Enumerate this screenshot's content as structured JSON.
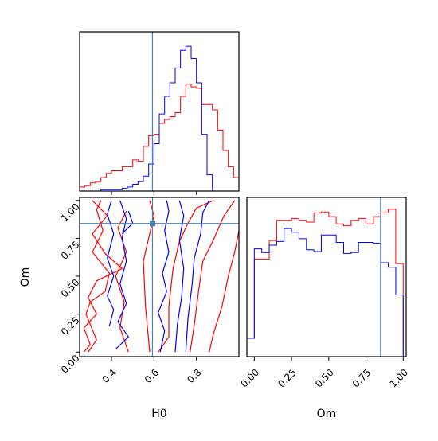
{
  "chart_data": {
    "type": "corner",
    "parameters": [
      "H0",
      "Om"
    ],
    "truth": {
      "H0": 0.593,
      "Om": 0.848
    },
    "colors": {
      "series_a": "#ff0000",
      "series_b": "#0000ff",
      "truth": "#4682b4"
    },
    "series": [
      {
        "color_key": "series_a"
      },
      {
        "color_key": "series_b"
      }
    ],
    "panels": [
      {
        "id": "hist-h0",
        "type": "histogram",
        "x_range": [
          0.25,
          1.0
        ],
        "show_x_ticks": false,
        "bin_edges": [
          0.25,
          0.275,
          0.3,
          0.325,
          0.35,
          0.375,
          0.4,
          0.425,
          0.45,
          0.475,
          0.5,
          0.525,
          0.55,
          0.575,
          0.6,
          0.625,
          0.65,
          0.675,
          0.7,
          0.725,
          0.75,
          0.775,
          0.8,
          0.825,
          0.85,
          0.875,
          0.9,
          0.925,
          0.95,
          0.975,
          1.0
        ],
        "series_counts": [
          [
            3,
            4,
            6,
            7,
            10,
            13,
            15,
            15,
            18,
            18,
            23,
            22,
            33,
            41,
            42,
            50,
            53,
            55,
            58,
            70,
            79,
            77,
            76,
            64,
            64,
            60,
            45,
            30,
            18,
            10
          ],
          [
            0,
            0,
            0,
            0,
            1,
            1,
            1,
            1,
            2,
            3,
            5,
            7,
            11,
            20,
            35,
            57,
            70,
            80,
            91,
            104,
            107,
            98,
            80,
            42,
            12,
            0,
            0,
            0,
            0,
            0
          ]
        ]
      },
      {
        "id": "contour-h0-om",
        "type": "contour",
        "x_range": [
          0.25,
          1.0
        ],
        "y_range": [
          -0.03,
          1.02
        ],
        "xticks": [
          {
            "v": 0.4,
            "t": "0.4"
          },
          {
            "v": 0.6,
            "t": "0.6"
          },
          {
            "v": 0.8,
            "t": "0.8"
          }
        ],
        "yticks": [
          {
            "v": 0.0,
            "t": "0.00"
          },
          {
            "v": 0.25,
            "t": "0.25"
          },
          {
            "v": 0.5,
            "t": "0.50"
          },
          {
            "v": 0.75,
            "t": "0.75"
          },
          {
            "v": 1.0,
            "t": "1.00"
          }
        ],
        "xlabel": "H0",
        "ylabel": "Om",
        "series_contours": [
          [
            [
              [
                0.27,
                0.0
              ],
              [
                0.3,
                0.05
              ],
              [
                0.27,
                0.16
              ],
              [
                0.33,
                0.25
              ],
              [
                0.29,
                0.36
              ],
              [
                0.33,
                0.47
              ],
              [
                0.45,
                0.55
              ],
              [
                0.37,
                0.65
              ],
              [
                0.31,
                0.78
              ],
              [
                0.38,
                0.9
              ],
              [
                0.31,
                1.0
              ]
            ],
            [
              [
                0.29,
                0.0
              ],
              [
                0.33,
                0.08
              ],
              [
                0.28,
                0.25
              ],
              [
                0.3,
                0.33
              ],
              [
                0.37,
                0.4
              ],
              [
                0.39,
                0.52
              ],
              [
                0.31,
                0.66
              ],
              [
                0.36,
                0.8
              ],
              [
                0.33,
                0.94
              ],
              [
                0.35,
                1.0
              ]
            ],
            [
              [
                0.48,
                0.0
              ],
              [
                0.44,
                0.16
              ],
              [
                0.46,
                0.33
              ],
              [
                0.42,
                0.5
              ],
              [
                0.47,
                0.66
              ],
              [
                0.43,
                0.82
              ],
              [
                0.47,
                0.93
              ]
            ],
            [
              [
                0.58,
                0.0
              ],
              [
                0.56,
                0.3
              ],
              [
                0.55,
                0.6
              ],
              [
                0.6,
                0.9
              ],
              [
                0.58,
                1.0
              ]
            ],
            [
              [
                0.62,
                0.0
              ],
              [
                0.67,
                0.1
              ],
              [
                0.67,
                0.3
              ],
              [
                0.69,
                0.55
              ],
              [
                0.72,
                0.73
              ],
              [
                0.76,
                0.85
              ],
              [
                0.8,
                0.95
              ],
              [
                0.88,
                1.0
              ]
            ],
            [
              [
                0.77,
                0.0
              ],
              [
                0.79,
                0.18
              ],
              [
                0.81,
                0.4
              ],
              [
                0.83,
                0.6
              ],
              [
                0.88,
                0.74
              ],
              [
                0.93,
                0.9
              ],
              [
                0.98,
                1.0
              ]
            ],
            [
              [
                0.86,
                0.0
              ],
              [
                0.88,
                0.12
              ],
              [
                0.92,
                0.3
              ],
              [
                0.95,
                0.5
              ],
              [
                0.98,
                0.66
              ],
              [
                1.0,
                0.8
              ]
            ]
          ],
          [
            [
              [
                0.39,
                0.17
              ],
              [
                0.41,
                0.28
              ],
              [
                0.38,
                0.37
              ],
              [
                0.41,
                0.5
              ],
              [
                0.38,
                0.62
              ],
              [
                0.41,
                0.78
              ],
              [
                0.38,
                0.91
              ],
              [
                0.4,
                1.0
              ]
            ],
            [
              [
                0.42,
                0.02
              ],
              [
                0.48,
                0.1
              ],
              [
                0.43,
                0.2
              ],
              [
                0.47,
                0.32
              ],
              [
                0.44,
                0.45
              ],
              [
                0.47,
                0.6
              ],
              [
                0.45,
                0.75
              ],
              [
                0.47,
                0.88
              ],
              [
                0.44,
                1.0
              ]
            ],
            [
              [
                0.48,
                0.93
              ],
              [
                0.5,
                0.85
              ],
              [
                0.45,
                0.78
              ]
            ],
            [
              [
                0.63,
                0.0
              ],
              [
                0.65,
                0.14
              ],
              [
                0.62,
                0.26
              ],
              [
                0.66,
                0.4
              ],
              [
                0.64,
                0.52
              ],
              [
                0.67,
                0.66
              ],
              [
                0.65,
                0.8
              ],
              [
                0.67,
                0.93
              ],
              [
                0.66,
                1.0
              ]
            ],
            [
              [
                0.7,
                0.0
              ],
              [
                0.71,
                0.18
              ],
              [
                0.73,
                0.36
              ],
              [
                0.74,
                0.55
              ],
              [
                0.72,
                0.74
              ],
              [
                0.74,
                0.9
              ],
              [
                0.72,
                1.0
              ]
            ],
            [
              [
                0.75,
                0.0
              ],
              [
                0.76,
                0.22
              ],
              [
                0.78,
                0.45
              ],
              [
                0.79,
                0.62
              ],
              [
                0.82,
                0.78
              ],
              [
                0.83,
                0.92
              ],
              [
                0.86,
                1.0
              ]
            ]
          ]
        ]
      },
      {
        "id": "hist-om",
        "type": "histogram",
        "x_range": [
          -0.05,
          1.02
        ],
        "xticks": [
          {
            "v": 0.0,
            "t": "0.00"
          },
          {
            "v": 0.25,
            "t": "0.25"
          },
          {
            "v": 0.5,
            "t": "0.50"
          },
          {
            "v": 0.75,
            "t": "0.75"
          },
          {
            "v": 1.0,
            "t": "1.00"
          }
        ],
        "xlabel": "Om",
        "bin_edges": [
          -0.05,
          0.0,
          0.05,
          0.1,
          0.15,
          0.2,
          0.25,
          0.3,
          0.35,
          0.4,
          0.45,
          0.5,
          0.55,
          0.6,
          0.65,
          0.7,
          0.75,
          0.8,
          0.85,
          0.9,
          0.95,
          1.0
        ],
        "series_counts": [
          [
            20,
            106,
            106,
            126,
            148,
            148,
            150,
            148,
            146,
            156,
            157,
            152,
            144,
            142,
            148,
            150,
            144,
            152,
            156,
            160,
            101
          ],
          [
            20,
            117,
            113,
            121,
            125,
            139,
            135,
            128,
            116,
            114,
            132,
            132,
            124,
            112,
            113,
            124,
            124,
            123,
            102,
            97,
            67
          ]
        ]
      }
    ]
  }
}
